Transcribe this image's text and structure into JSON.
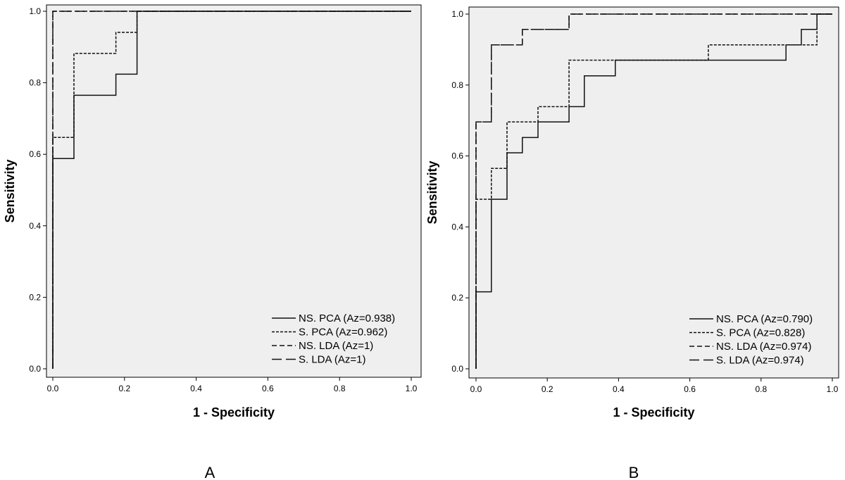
{
  "chart_data": [
    {
      "type": "line",
      "panel_label": "A",
      "xlabel": "1 - Specificity",
      "ylabel": "Sensitivity",
      "xlim": [
        0,
        1
      ],
      "ylim": [
        0,
        1
      ],
      "xticks": [
        "0.0",
        "0.2",
        "0.4",
        "0.6",
        "0.8",
        "1.0"
      ],
      "yticks": [
        "0.0",
        "0.2",
        "0.4",
        "0.6",
        "0.8",
        "1.0"
      ],
      "grid": false,
      "legend_position": "bottom-right",
      "background": "#efefef",
      "series": [
        {
          "name": "NS. PCA (Az=0.938)",
          "dash": "solid",
          "x": [
            0,
            0,
            0.059,
            0.059,
            0.176,
            0.176,
            0.235,
            0.235,
            1
          ],
          "y": [
            0,
            0.588,
            0.588,
            0.765,
            0.765,
            0.824,
            0.824,
            1,
            1
          ]
        },
        {
          "name": "S. PCA (Az=0.962)",
          "dash": "short",
          "x": [
            0,
            0,
            0.059,
            0.059,
            0.176,
            0.176,
            0.235,
            0.235,
            1
          ],
          "y": [
            0,
            0.647,
            0.647,
            0.882,
            0.882,
            0.941,
            0.941,
            1,
            1
          ]
        },
        {
          "name": "NS. LDA (Az=1)",
          "dash": "medium",
          "x": [
            0,
            0,
            1
          ],
          "y": [
            0,
            1,
            1
          ]
        },
        {
          "name": "S. LDA (Az=1)",
          "dash": "long",
          "x": [
            0,
            0,
            1
          ],
          "y": [
            0,
            1,
            1
          ]
        }
      ]
    },
    {
      "type": "line",
      "panel_label": "B",
      "xlabel": "1 - Specificity",
      "ylabel": "Sensitivity",
      "xlim": [
        0,
        1
      ],
      "ylim": [
        0,
        1
      ],
      "xticks": [
        "0.0",
        "0.2",
        "0.4",
        "0.6",
        "0.8",
        "1.0"
      ],
      "yticks": [
        "0.0",
        "0.2",
        "0.4",
        "0.6",
        "0.8",
        "1.0"
      ],
      "grid": false,
      "legend_position": "bottom-right",
      "background": "#efefef",
      "series": [
        {
          "name": "NS. PCA (Az=0.790)",
          "dash": "solid",
          "x": [
            0,
            0,
            0.043,
            0.043,
            0.087,
            0.087,
            0.13,
            0.13,
            0.174,
            0.174,
            0.261,
            0.261,
            0.304,
            0.304,
            0.391,
            0.391,
            0.87,
            0.87,
            0.913,
            0.913,
            0.957,
            0.957,
            1
          ],
          "y": [
            0,
            0.217,
            0.217,
            0.478,
            0.478,
            0.609,
            0.609,
            0.652,
            0.652,
            0.696,
            0.696,
            0.739,
            0.739,
            0.826,
            0.826,
            0.87,
            0.87,
            0.913,
            0.913,
            0.957,
            0.957,
            1,
            1
          ]
        },
        {
          "name": "S. PCA (Az=0.828)",
          "dash": "short",
          "x": [
            0,
            0,
            0.043,
            0.043,
            0.087,
            0.087,
            0.174,
            0.174,
            0.261,
            0.261,
            0.652,
            0.652,
            0.957,
            0.957,
            1
          ],
          "y": [
            0,
            0.478,
            0.478,
            0.565,
            0.565,
            0.696,
            0.696,
            0.739,
            0.739,
            0.87,
            0.87,
            0.913,
            0.913,
            1,
            1
          ]
        },
        {
          "name": "NS. LDA (Az=0.974)",
          "dash": "medium",
          "x": [
            0,
            0,
            0.043,
            0.043,
            0.13,
            0.13,
            0.261,
            0.261,
            1
          ],
          "y": [
            0,
            0.696,
            0.696,
            0.913,
            0.913,
            0.957,
            0.957,
            1,
            1
          ]
        },
        {
          "name": "S. LDA (Az=0.974)",
          "dash": "long",
          "x": [
            0,
            0,
            0.043,
            0.043,
            0.13,
            0.13,
            0.261,
            0.261,
            1
          ],
          "y": [
            0,
            0.696,
            0.696,
            0.913,
            0.913,
            0.957,
            0.957,
            1,
            1
          ]
        }
      ]
    }
  ]
}
